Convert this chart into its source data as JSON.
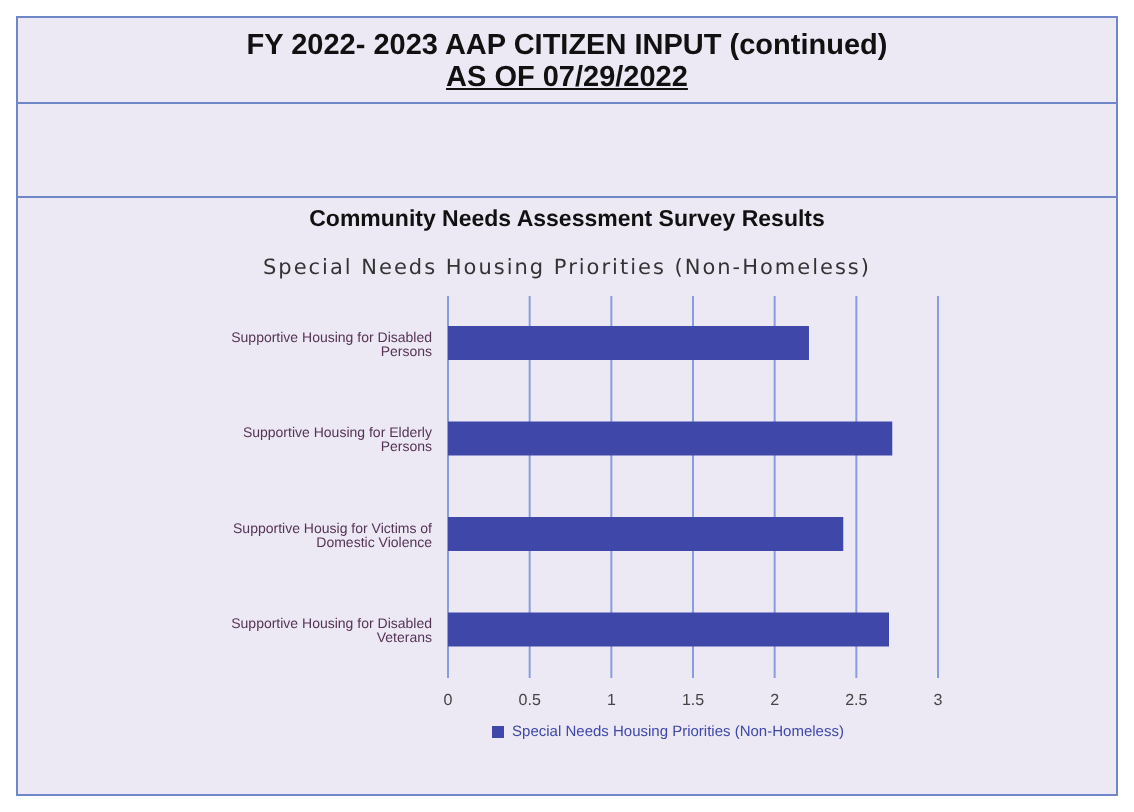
{
  "chart_data": {
    "type": "bar",
    "orientation": "horizontal",
    "title": "Special Needs Housing Priorities (Non-Homeless)",
    "annotations": [
      "FY 2022- 2023 AAP CITIZEN INPUT (continued)",
      "AS OF 07/29/2022",
      "Community Needs Assessment Survey Results"
    ],
    "categories": [
      "Supportive Housing for Disabled Persons",
      "Supportive Housing for Elderly Persons",
      "Supportive Housig for Victims of Domestic Violence",
      "Supportive Housing for Disabled Veterans"
    ],
    "series": [
      {
        "name": "Special Needs Housing Priorities (Non-Homeless)",
        "color": "#3f48a8",
        "values": [
          2.21,
          2.72,
          2.42,
          2.7
        ]
      }
    ],
    "xlim": [
      0,
      3
    ],
    "xticks": [
      0,
      0.5,
      1,
      1.5,
      2,
      2.5,
      3
    ],
    "grid": "x",
    "legend": "bottom"
  }
}
